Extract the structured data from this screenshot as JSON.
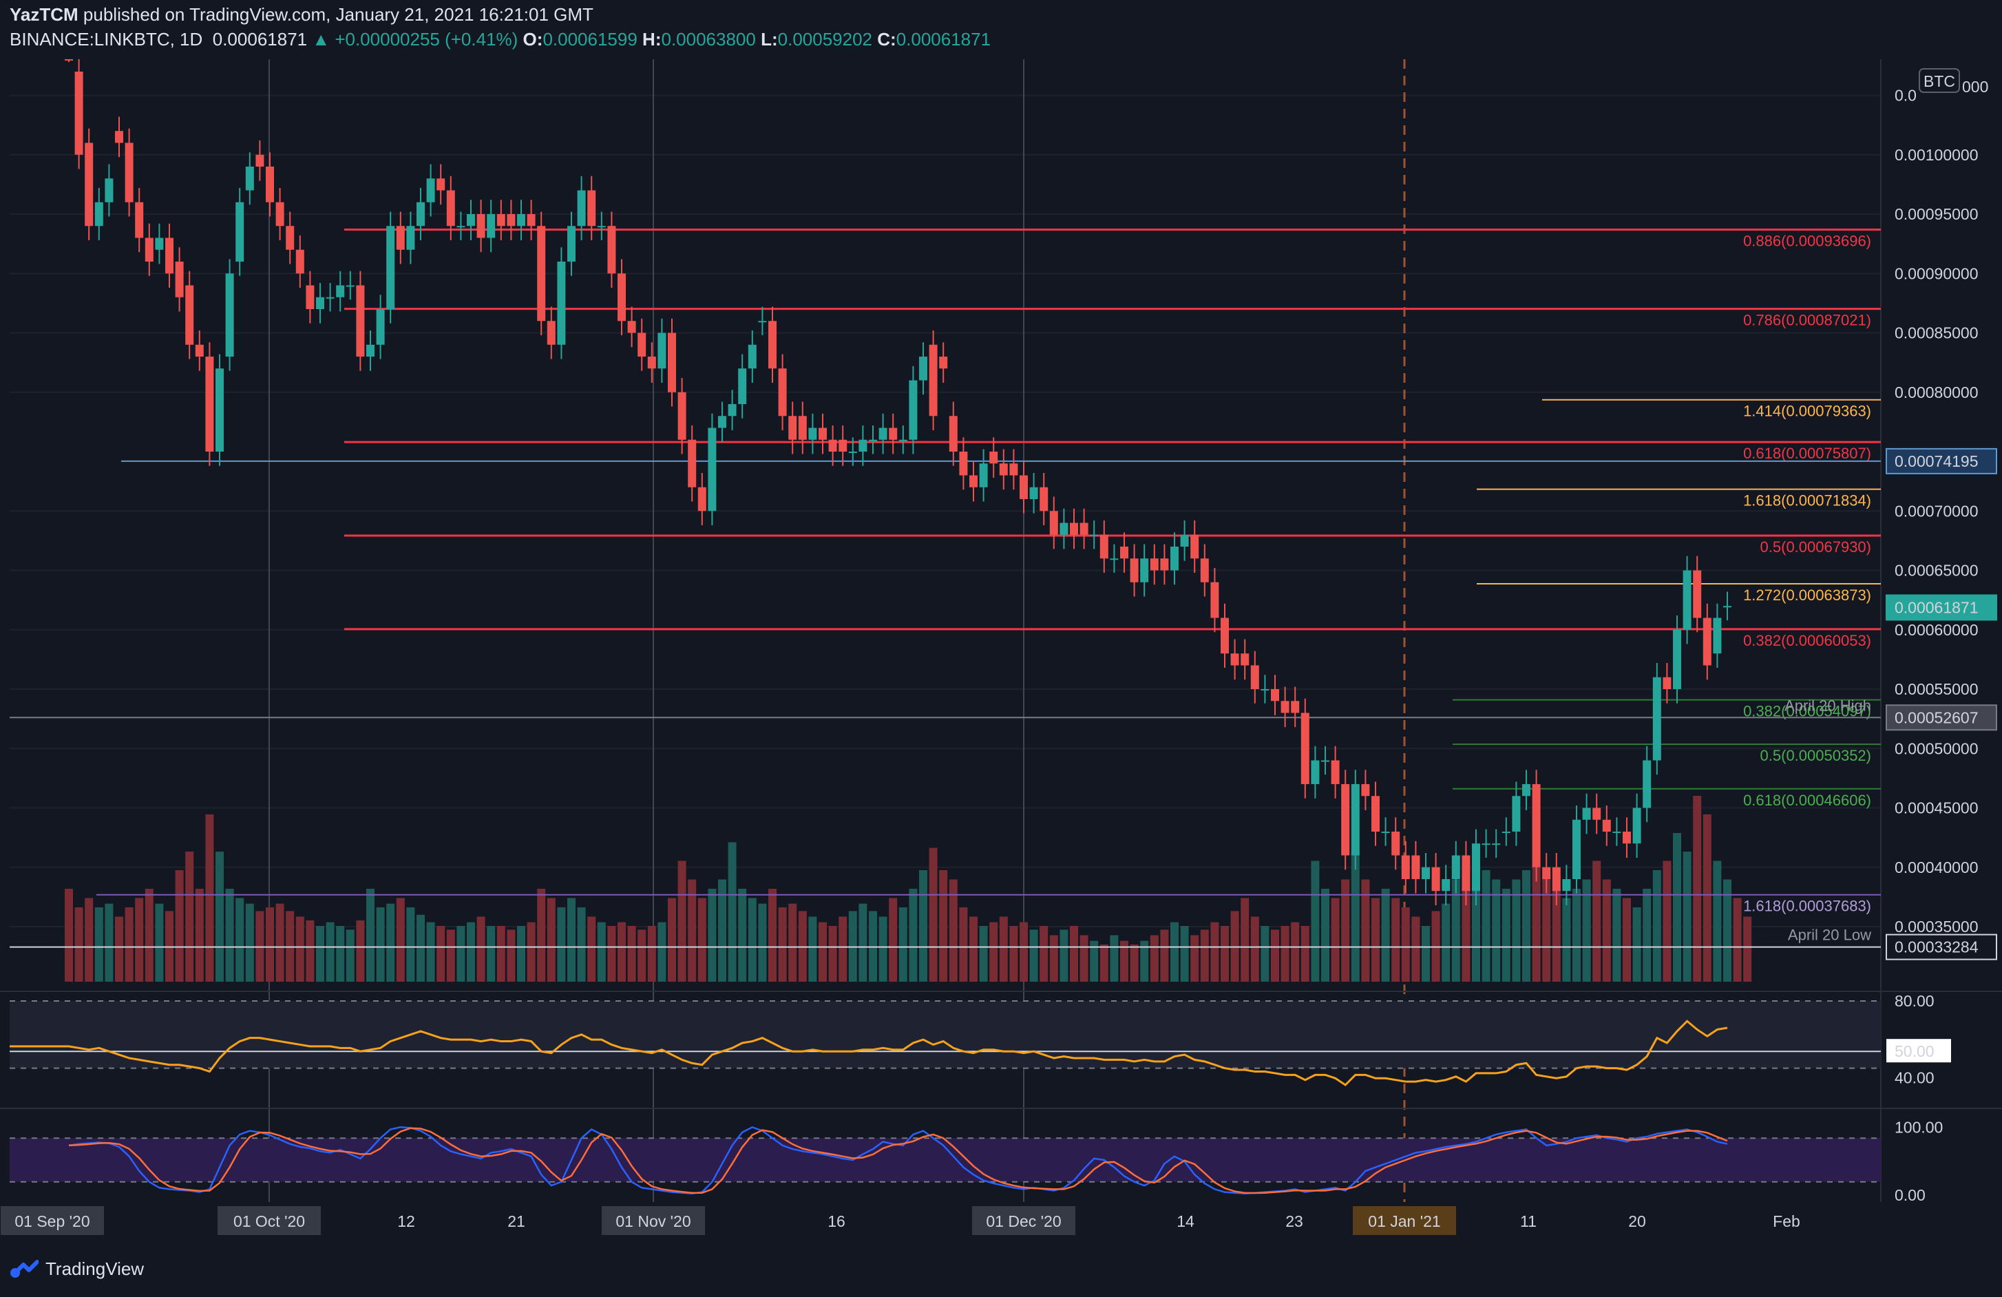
{
  "header": {
    "author": "YazTCM",
    "published": "published on TradingView.com, January 21, 2021 16:21:01 GMT",
    "symbol": "BINANCE:LINKBTC, 1D",
    "last": "0.00061871",
    "change": "▲ +0.00000255 (+0.41%)",
    "o_label": "O:",
    "o": "0.00061599",
    "h_label": "H:",
    "h": "0.00063800",
    "l_label": "L:",
    "l": "0.00059202",
    "c_label": "C:",
    "c": "0.00061871"
  },
  "brand": {
    "name": "TradingView",
    "icon": "tradingview-logo-icon"
  },
  "colors": {
    "bull": "#26a69a",
    "bear": "#ef5350",
    "bg": "#131722",
    "rsi": "#f7a21b",
    "stoch_k": "#2962ff",
    "stoch_d": "#ff6d3a"
  },
  "chart_data": {
    "type": "candlestick",
    "currency": "BTC",
    "yrange": [
      0.000322,
      0.001055
    ],
    "price_ticks": [
      "0.00100000",
      "0.00095000",
      "0.00090000",
      "0.00085000",
      "0.00080000",
      "0.00070000",
      "0.00065000",
      "0.00060000",
      "0.00055000",
      "0.00050000",
      "0.00045000",
      "0.00040000",
      "0.00035000"
    ],
    "top_tick_partial": "0.0",
    "top_tick_tail": "000",
    "x_labels": [
      "01 Sep '20",
      "01 Oct '20",
      "12",
      "21",
      "01 Nov '20",
      "16",
      "01 Dec '20",
      "14",
      "23",
      "01 Jan '21",
      "11",
      "20",
      "Feb"
    ],
    "price_tags": [
      {
        "text": "0.00074195",
        "price": 0.00074195,
        "style": "blue"
      },
      {
        "text": "0.00061871",
        "price": 0.00061871,
        "style": "last"
      },
      {
        "text": "0.00052607",
        "price": 0.00052607,
        "style": "grey"
      },
      {
        "text": "0.00033284",
        "price": 0.00033284,
        "style": "white"
      }
    ],
    "levels": [
      {
        "label": "0.886(0.00093696)",
        "price": 0.00093696,
        "color": "#f23645"
      },
      {
        "label": "0.786(0.00087021)",
        "price": 0.00087021,
        "color": "#f23645"
      },
      {
        "label": "1.414(0.00079363)",
        "price": 0.00079363,
        "color": "#ffb74d"
      },
      {
        "label": "0.618(0.00075807)",
        "price": 0.00075807,
        "color": "#f23645"
      },
      {
        "label": "1.618(0.00071834)",
        "price": 0.00071834,
        "color": "#ffb74d"
      },
      {
        "label": "0.5(0.00067930)",
        "price": 0.0006793,
        "color": "#f23645"
      },
      {
        "label": "1.272(0.00063873)",
        "price": 0.00063873,
        "color": "#ffb74d"
      },
      {
        "label": "0.382(0.00060053)",
        "price": 0.00060053,
        "color": "#f23645"
      },
      {
        "label": "0.382(0.00054097)",
        "price": 0.00054097,
        "color": "#2e7d32"
      },
      {
        "label": "0.5(0.00050352)",
        "price": 0.00050352,
        "color": "#2e7d32"
      },
      {
        "label": "0.618(0.00046606)",
        "price": 0.00046606,
        "color": "#2e7d32"
      },
      {
        "label": "1.618(0.00037683)",
        "price": 0.00037683,
        "color": "#7e57c2"
      }
    ],
    "notes": [
      {
        "text": "April 20 High",
        "price": 0.00052607
      },
      {
        "text": "April 20 Low",
        "price": 0.00033284
      }
    ],
    "closes": [
      0.00109,
      0.001,
      0.00094,
      0.00096,
      0.00098,
      0.00101,
      0.00096,
      0.00093,
      0.00091,
      0.00093,
      0.0009,
      0.00088,
      0.00084,
      0.00083,
      0.00075,
      0.00082,
      0.0009,
      0.00096,
      0.00099,
      0.00099,
      0.00096,
      0.00094,
      0.00092,
      0.0009,
      0.00087,
      0.00088,
      0.00088,
      0.00089,
      0.00089,
      0.00083,
      0.00084,
      0.00087,
      0.00094,
      0.00092,
      0.00094,
      0.00096,
      0.00098,
      0.00097,
      0.00094,
      0.00094,
      0.00095,
      0.00093,
      0.00095,
      0.00094,
      0.00094,
      0.00095,
      0.00094,
      0.00086,
      0.00084,
      0.00091,
      0.00094,
      0.00097,
      0.00094,
      0.00094,
      0.0009,
      0.00086,
      0.00085,
      0.00083,
      0.00082,
      0.00085,
      0.0008,
      0.00076,
      0.00072,
      0.0007,
      0.00077,
      0.00078,
      0.00079,
      0.00082,
      0.00084,
      0.00086,
      0.00082,
      0.00078,
      0.00076,
      0.00076,
      0.00077,
      0.00076,
      0.00075,
      0.00075,
      0.00075,
      0.00076,
      0.00076,
      0.00077,
      0.00076,
      0.00076,
      0.00081,
      0.00083,
      0.00078,
      0.00082,
      0.00075,
      0.00073,
      0.00072,
      0.00074,
      0.00074,
      0.00073,
      0.00073,
      0.00071,
      0.00072,
      0.0007,
      0.00068,
      0.00069,
      0.00068,
      0.00068,
      0.00068,
      0.00066,
      0.00066,
      0.00066,
      0.00064,
      0.00066,
      0.00065,
      0.00065,
      0.00067,
      0.00068,
      0.00066,
      0.00064,
      0.00061,
      0.00058,
      0.00057,
      0.00057,
      0.00055,
      0.00055,
      0.00054,
      0.00053,
      0.00053,
      0.00047,
      0.00049,
      0.00049,
      0.00047,
      0.00041,
      0.00047,
      0.00046,
      0.00043,
      0.00043,
      0.00041,
      0.00039,
      0.00039,
      0.0004,
      0.00038,
      0.00039,
      0.00041,
      0.00038,
      0.00042,
      0.00042,
      0.00042,
      0.00043,
      0.00046,
      0.00047,
      0.0004,
      0.00039,
      0.00038,
      0.00039,
      0.00044,
      0.00045,
      0.00044,
      0.00043,
      0.00043,
      0.00042,
      0.00045,
      0.00049,
      0.00056,
      0.00055,
      0.0006,
      0.00065,
      0.00061,
      0.00057,
      0.00061,
      0.00062
    ],
    "opens": [
      0.00112,
      0.00107,
      0.00101,
      0.00094,
      0.00096,
      0.00102,
      0.00101,
      0.00096,
      0.00093,
      0.00092,
      0.00093,
      0.00091,
      0.00089,
      0.00084,
      0.00083,
      0.00075,
      0.00083,
      0.00091,
      0.00097,
      0.001,
      0.00099,
      0.00096,
      0.00094,
      0.00092,
      0.00089,
      0.00087,
      0.00088,
      0.00088,
      0.00089,
      0.00089,
      0.00083,
      0.00084,
      0.00087,
      0.00094,
      0.00092,
      0.00094,
      0.00096,
      0.00098,
      0.00097,
      0.00094,
      0.00094,
      0.00095,
      0.00093,
      0.00095,
      0.00095,
      0.00094,
      0.00095,
      0.00094,
      0.00086,
      0.00084,
      0.00091,
      0.00094,
      0.00097,
      0.00094,
      0.00094,
      0.0009,
      0.00086,
      0.00085,
      0.00083,
      0.00082,
      0.00085,
      0.0008,
      0.00076,
      0.00072,
      0.0007,
      0.00077,
      0.00078,
      0.00079,
      0.00082,
      0.00086,
      0.00086,
      0.00082,
      0.00078,
      0.00078,
      0.00076,
      0.00077,
      0.00076,
      0.00076,
      0.00075,
      0.00075,
      0.00076,
      0.00076,
      0.00077,
      0.00076,
      0.00076,
      0.00081,
      0.00084,
      0.00083,
      0.00078,
      0.00075,
      0.00073,
      0.00072,
      0.00075,
      0.00074,
      0.00074,
      0.00073,
      0.00071,
      0.00072,
      0.0007,
      0.00068,
      0.00069,
      0.00069,
      0.00068,
      0.00068,
      0.00066,
      0.00067,
      0.00066,
      0.00064,
      0.00066,
      0.00066,
      0.00065,
      0.00067,
      0.00068,
      0.00066,
      0.00064,
      0.00061,
      0.00058,
      0.00058,
      0.00057,
      0.00055,
      0.00055,
      0.00054,
      0.00054,
      0.00053,
      0.00047,
      0.00049,
      0.00049,
      0.00047,
      0.00041,
      0.00047,
      0.00046,
      0.00043,
      0.00043,
      0.00041,
      0.00041,
      0.00039,
      0.0004,
      0.00038,
      0.00039,
      0.00041,
      0.00038,
      0.00042,
      0.00042,
      0.00043,
      0.00043,
      0.00046,
      0.00047,
      0.0004,
      0.0004,
      0.00038,
      0.00039,
      0.00044,
      0.00045,
      0.00044,
      0.00043,
      0.00043,
      0.00042,
      0.00045,
      0.00049,
      0.00056,
      0.00055,
      0.0006,
      0.00065,
      0.00061,
      0.00058,
      0.00062
    ],
    "volume": [
      0.5,
      0.4,
      0.45,
      0.4,
      0.42,
      0.35,
      0.4,
      0.45,
      0.5,
      0.42,
      0.38,
      0.6,
      0.7,
      0.5,
      0.9,
      0.7,
      0.5,
      0.45,
      0.42,
      0.38,
      0.4,
      0.42,
      0.38,
      0.35,
      0.33,
      0.3,
      0.32,
      0.3,
      0.28,
      0.33,
      0.5,
      0.4,
      0.42,
      0.45,
      0.4,
      0.36,
      0.32,
      0.3,
      0.28,
      0.3,
      0.32,
      0.35,
      0.3,
      0.3,
      0.28,
      0.3,
      0.32,
      0.5,
      0.45,
      0.4,
      0.45,
      0.4,
      0.35,
      0.32,
      0.3,
      0.32,
      0.3,
      0.28,
      0.3,
      0.32,
      0.45,
      0.65,
      0.55,
      0.45,
      0.5,
      0.55,
      0.75,
      0.5,
      0.45,
      0.42,
      0.5,
      0.4,
      0.42,
      0.38,
      0.35,
      0.32,
      0.3,
      0.35,
      0.38,
      0.42,
      0.38,
      0.35,
      0.45,
      0.4,
      0.5,
      0.6,
      0.72,
      0.6,
      0.55,
      0.4,
      0.35,
      0.3,
      0.32,
      0.35,
      0.3,
      0.32,
      0.28,
      0.3,
      0.25,
      0.28,
      0.3,
      0.25,
      0.22,
      0.2,
      0.25,
      0.22,
      0.2,
      0.22,
      0.25,
      0.28,
      0.32,
      0.3,
      0.25,
      0.28,
      0.32,
      0.3,
      0.38,
      0.45,
      0.35,
      0.3,
      0.28,
      0.3,
      0.32,
      0.3,
      0.65,
      0.5,
      0.45,
      0.55,
      0.7,
      0.55,
      0.45,
      0.5,
      0.45,
      0.4,
      0.35,
      0.3,
      0.38,
      0.42,
      0.55,
      0.5,
      0.6,
      0.6,
      0.55,
      0.5,
      0.55,
      0.6,
      0.65,
      0.58,
      0.5,
      0.45,
      0.5,
      0.55,
      0.65,
      0.55,
      0.5,
      0.45,
      0.4,
      0.5,
      0.6,
      0.65,
      0.8,
      0.7,
      1.0,
      0.9,
      0.65,
      0.55,
      0.45,
      0.35
    ],
    "rsi": {
      "levels": [
        80,
        50,
        40
      ],
      "tick_labels": [
        "80.00",
        "50.00",
        "40.00"
      ],
      "values": [
        53,
        52,
        51,
        52,
        50,
        48,
        46,
        45,
        44,
        43,
        42,
        42,
        41,
        40,
        38,
        46,
        52,
        56,
        58,
        58,
        57,
        56,
        55,
        54,
        53,
        53,
        53,
        52,
        52,
        50,
        51,
        52,
        56,
        58,
        60,
        62,
        60,
        58,
        57,
        57,
        57,
        56,
        57,
        56,
        56,
        57,
        56,
        50,
        49,
        54,
        58,
        60,
        57,
        57,
        54,
        52,
        51,
        50,
        49,
        51,
        48,
        45,
        43,
        42,
        48,
        50,
        52,
        55,
        56,
        58,
        55,
        52,
        50,
        50,
        51,
        50,
        50,
        50,
        50,
        51,
        51,
        52,
        51,
        51,
        55,
        57,
        54,
        56,
        52,
        50,
        49,
        51,
        51,
        50,
        50,
        49,
        50,
        48,
        46,
        47,
        46,
        46,
        46,
        45,
        45,
        45,
        44,
        45,
        44,
        44,
        47,
        48,
        45,
        44,
        42,
        40,
        39,
        39,
        38,
        38,
        37,
        36,
        36,
        33,
        36,
        36,
        34,
        30,
        36,
        36,
        34,
        34,
        33,
        32,
        32,
        33,
        32,
        33,
        35,
        32,
        37,
        37,
        37,
        38,
        42,
        43,
        36,
        35,
        34,
        35,
        40,
        41,
        41,
        40,
        40,
        39,
        42,
        47,
        58,
        55,
        62,
        68,
        63,
        59,
        63,
        64
      ]
    },
    "stoch": {
      "levels": [
        80,
        20
      ],
      "tick_labels": [
        "100.00",
        "0.00"
      ],
      "k": [
        70,
        72,
        73,
        74,
        73,
        68,
        55,
        35,
        20,
        12,
        10,
        9,
        8,
        6,
        10,
        40,
        70,
        85,
        90,
        88,
        84,
        78,
        72,
        68,
        66,
        62,
        60,
        64,
        58,
        52,
        65,
        80,
        92,
        95,
        94,
        90,
        82,
        70,
        62,
        58,
        55,
        52,
        60,
        62,
        65,
        60,
        55,
        30,
        15,
        20,
        50,
        80,
        92,
        85,
        65,
        40,
        20,
        12,
        10,
        8,
        6,
        5,
        4,
        6,
        20,
        45,
        70,
        88,
        95,
        90,
        80,
        70,
        65,
        62,
        60,
        58,
        55,
        52,
        50,
        58,
        65,
        75,
        72,
        70,
        85,
        90,
        80,
        70,
        55,
        40,
        30,
        22,
        18,
        15,
        12,
        10,
        12,
        10,
        8,
        12,
        22,
        38,
        52,
        50,
        40,
        28,
        20,
        15,
        22,
        45,
        55,
        48,
        30,
        18,
        10,
        6,
        5,
        4,
        5,
        6,
        7,
        8,
        10,
        6,
        8,
        10,
        12,
        8,
        20,
        35,
        40,
        45,
        50,
        55,
        60,
        62,
        65,
        68,
        70,
        72,
        75,
        80,
        85,
        88,
        90,
        92,
        80,
        70,
        72,
        75,
        80,
        82,
        84,
        80,
        78,
        75,
        80,
        82,
        86,
        88,
        90,
        92,
        88,
        82,
        75,
        72
      ]
    }
  }
}
